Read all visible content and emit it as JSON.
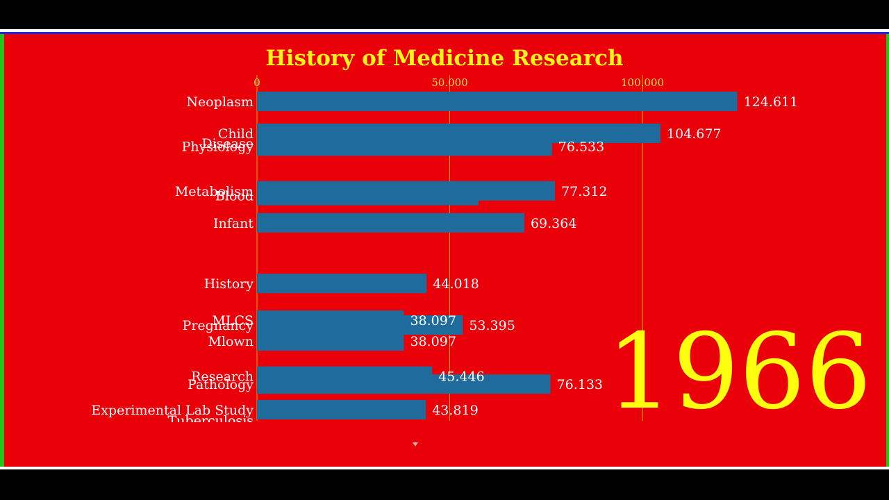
{
  "chart_data": {
    "type": "bar",
    "title": "History of Medicine Research",
    "period_label": "1966",
    "x_axis": {
      "ticks": [
        0,
        50000,
        100000
      ],
      "tick_labels": [
        "0",
        "50.000",
        "100.000"
      ],
      "grid": true
    },
    "bars": [
      {
        "label": "Neoplasm",
        "value": 124611,
        "value_label": "124.611",
        "slot": 0
      },
      {
        "label": "Child",
        "value": 104677,
        "value_label": "104.677",
        "slot": 1
      },
      {
        "label": "Disease",
        "value": 76533,
        "value_label": "",
        "slot": 1.3
      },
      {
        "label": "Physiology",
        "value": 76533,
        "value_label": "76.533",
        "slot": 1.4
      },
      {
        "label": "Metabolism",
        "value": 77312,
        "value_label": "77.312",
        "slot": 2.8
      },
      {
        "label": "Blood",
        "value": 57500,
        "value_label": "",
        "slot": 2.95
      },
      {
        "label": "Infant",
        "value": 69364,
        "value_label": "69.364",
        "slot": 3.8
      },
      {
        "label": "History",
        "value": 44018,
        "value_label": "44.018",
        "slot": 5.7
      },
      {
        "label": "MLCS",
        "value": 38097,
        "value_label": "38.097",
        "slot": 6.85
      },
      {
        "label": "Pregnancy",
        "value": 53395,
        "value_label": "53.395",
        "slot": 7.0
      },
      {
        "label": "Mlown",
        "value": 38097,
        "value_label": "38.097",
        "slot": 7.5
      },
      {
        "label": "Research",
        "value": 45446,
        "value_label": "45.446",
        "slot": 8.6
      },
      {
        "label": "Pathology",
        "value": 76133,
        "value_label": "76.133",
        "slot": 8.85
      },
      {
        "label": "Experimental Lab Study",
        "value": 43819,
        "value_label": "43.819",
        "slot": 9.65
      }
    ],
    "clipped_labels": [
      "Tuberculosis",
      "Tuberculosis"
    ],
    "colors": {
      "background": "#ea0008",
      "bar": "#1f6b9b",
      "title": "#fff31a",
      "year": "#ffff10",
      "frame_border": "#26c31f"
    }
  }
}
